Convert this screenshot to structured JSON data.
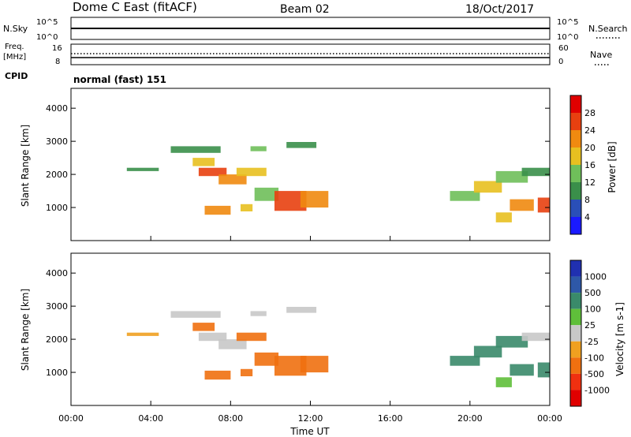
{
  "header": {
    "station": "Dome C East (fitACF)",
    "beam": "Beam 02",
    "date": "18/Oct/2017"
  },
  "strips": {
    "nsky_label": "N.Sky",
    "nsearch_label": "N.Search",
    "nsky_ticks": [
      "10^5",
      "10^0"
    ],
    "nsearch_ticks": [
      "10^5",
      "10^0"
    ],
    "freq_label_top": "Freq.",
    "freq_label_unit": "[MHz]",
    "freq_ticks": [
      "16",
      "8"
    ],
    "nave_label": "Nave",
    "nave_ticks": [
      "60",
      "0"
    ],
    "cpid_label": "CPID",
    "cpid_value": "normal (fast) 151"
  },
  "x_axis": {
    "label": "Time UT",
    "ticks": [
      "00:00",
      "04:00",
      "08:00",
      "12:00",
      "16:00",
      "20:00",
      "00:00"
    ]
  },
  "power_scale": {
    "label": "Power [dB]",
    "ticks": [
      "4",
      "8",
      "12",
      "16",
      "20",
      "24",
      "28"
    ],
    "colors": [
      "#1a1aff",
      "#2a4fb8",
      "#3a8f4a",
      "#6fbf5a",
      "#e8c020",
      "#f08a10",
      "#e84010",
      "#e00000"
    ]
  },
  "velocity_scale": {
    "label": "Velocity [m s-1]",
    "ticks": [
      "1000",
      "500",
      "100",
      "25",
      "-25",
      "-100",
      "-500",
      "-1000"
    ],
    "colors": [
      "#2030b0",
      "#2e58a8",
      "#3a8a6a",
      "#5fbf3a",
      "#c8c8c8",
      "#f0a020",
      "#f07010",
      "#f03010",
      "#e00000"
    ]
  },
  "chart_data": [
    {
      "type": "heatmap",
      "title": "Power",
      "ylabel": "Slant Range [km]",
      "xlabel": "",
      "xlim": [
        0,
        24
      ],
      "ylim": [
        0,
        4600
      ],
      "y_ticks": [
        1000,
        2000,
        3000,
        4000
      ],
      "x_tick_hours": [
        0,
        4,
        8,
        12,
        16,
        20,
        24
      ],
      "patches": [
        {
          "t0": 5.0,
          "t1": 7.5,
          "r0": 2650,
          "r1": 2850,
          "power": 8
        },
        {
          "t0": 6.1,
          "t1": 7.2,
          "r0": 2250,
          "r1": 2500,
          "power": 16
        },
        {
          "t0": 6.4,
          "t1": 7.8,
          "r0": 1950,
          "r1": 2200,
          "power": 24
        },
        {
          "t0": 7.4,
          "t1": 8.8,
          "r0": 1700,
          "r1": 2000,
          "power": 20
        },
        {
          "t0": 8.3,
          "t1": 9.8,
          "r0": 1950,
          "r1": 2200,
          "power": 16
        },
        {
          "t0": 9.0,
          "t1": 9.8,
          "r0": 2700,
          "r1": 2850,
          "power": 12
        },
        {
          "t0": 10.8,
          "t1": 12.3,
          "r0": 2800,
          "r1": 2980,
          "power": 8
        },
        {
          "t0": 6.7,
          "t1": 8.0,
          "r0": 780,
          "r1": 1050,
          "power": 20
        },
        {
          "t0": 8.5,
          "t1": 9.1,
          "r0": 880,
          "r1": 1100,
          "power": 16
        },
        {
          "t0": 9.2,
          "t1": 10.4,
          "r0": 1200,
          "r1": 1600,
          "power": 12
        },
        {
          "t0": 10.2,
          "t1": 11.8,
          "r0": 900,
          "r1": 1500,
          "power": 24
        },
        {
          "t0": 11.5,
          "t1": 12.9,
          "r0": 1000,
          "r1": 1500,
          "power": 20
        },
        {
          "t0": 2.8,
          "t1": 4.4,
          "r0": 2100,
          "r1": 2200,
          "power": 8
        },
        {
          "t0": 19.0,
          "t1": 20.5,
          "r0": 1200,
          "r1": 1500,
          "power": 12
        },
        {
          "t0": 20.2,
          "t1": 21.6,
          "r0": 1450,
          "r1": 1800,
          "power": 16
        },
        {
          "t0": 21.3,
          "t1": 22.9,
          "r0": 1750,
          "r1": 2100,
          "power": 12
        },
        {
          "t0": 22.6,
          "t1": 24.0,
          "r0": 1950,
          "r1": 2200,
          "power": 8
        },
        {
          "t0": 22.0,
          "t1": 23.2,
          "r0": 900,
          "r1": 1250,
          "power": 20
        },
        {
          "t0": 23.4,
          "t1": 24.0,
          "r0": 850,
          "r1": 1300,
          "power": 24
        },
        {
          "t0": 21.3,
          "t1": 22.1,
          "r0": 550,
          "r1": 850,
          "power": 16
        }
      ]
    },
    {
      "type": "heatmap",
      "title": "Velocity",
      "ylabel": "Slant Range [km]",
      "xlabel": "Time UT",
      "xlim": [
        0,
        24
      ],
      "ylim": [
        0,
        4600
      ],
      "y_ticks": [
        1000,
        2000,
        3000,
        4000
      ],
      "x_tick_hours": [
        0,
        4,
        8,
        12,
        16,
        20,
        24
      ],
      "patches": [
        {
          "t0": 5.0,
          "t1": 7.5,
          "r0": 2650,
          "r1": 2850,
          "velocity": 0
        },
        {
          "t0": 6.1,
          "t1": 7.2,
          "r0": 2250,
          "r1": 2500,
          "velocity": -200
        },
        {
          "t0": 6.4,
          "t1": 7.8,
          "r0": 1950,
          "r1": 2200,
          "velocity": 0
        },
        {
          "t0": 7.4,
          "t1": 8.8,
          "r0": 1700,
          "r1": 2000,
          "velocity": 0
        },
        {
          "t0": 8.3,
          "t1": 9.8,
          "r0": 1950,
          "r1": 2200,
          "velocity": -200
        },
        {
          "t0": 9.0,
          "t1": 9.8,
          "r0": 2700,
          "r1": 2850,
          "velocity": 0
        },
        {
          "t0": 10.8,
          "t1": 12.3,
          "r0": 2800,
          "r1": 2980,
          "velocity": 0
        },
        {
          "t0": 6.7,
          "t1": 8.0,
          "r0": 780,
          "r1": 1050,
          "velocity": -200
        },
        {
          "t0": 8.5,
          "t1": 9.1,
          "r0": 880,
          "r1": 1100,
          "velocity": -200
        },
        {
          "t0": 9.2,
          "t1": 10.4,
          "r0": 1200,
          "r1": 1600,
          "velocity": -200
        },
        {
          "t0": 10.2,
          "t1": 11.8,
          "r0": 900,
          "r1": 1500,
          "velocity": -200
        },
        {
          "t0": 11.5,
          "t1": 12.9,
          "r0": 1000,
          "r1": 1500,
          "velocity": -200
        },
        {
          "t0": 2.8,
          "t1": 4.4,
          "r0": 2100,
          "r1": 2200,
          "velocity": -50
        },
        {
          "t0": 19.0,
          "t1": 20.5,
          "r0": 1200,
          "r1": 1500,
          "velocity": 200
        },
        {
          "t0": 20.2,
          "t1": 21.6,
          "r0": 1450,
          "r1": 1800,
          "velocity": 200
        },
        {
          "t0": 21.3,
          "t1": 22.9,
          "r0": 1750,
          "r1": 2100,
          "velocity": 200
        },
        {
          "t0": 22.6,
          "t1": 24.0,
          "r0": 1950,
          "r1": 2200,
          "velocity": 0
        },
        {
          "t0": 22.0,
          "t1": 23.2,
          "r0": 900,
          "r1": 1250,
          "velocity": 200
        },
        {
          "t0": 23.4,
          "t1": 24.0,
          "r0": 850,
          "r1": 1300,
          "velocity": 200
        },
        {
          "t0": 21.3,
          "t1": 22.1,
          "r0": 550,
          "r1": 850,
          "velocity": 60
        }
      ]
    }
  ]
}
